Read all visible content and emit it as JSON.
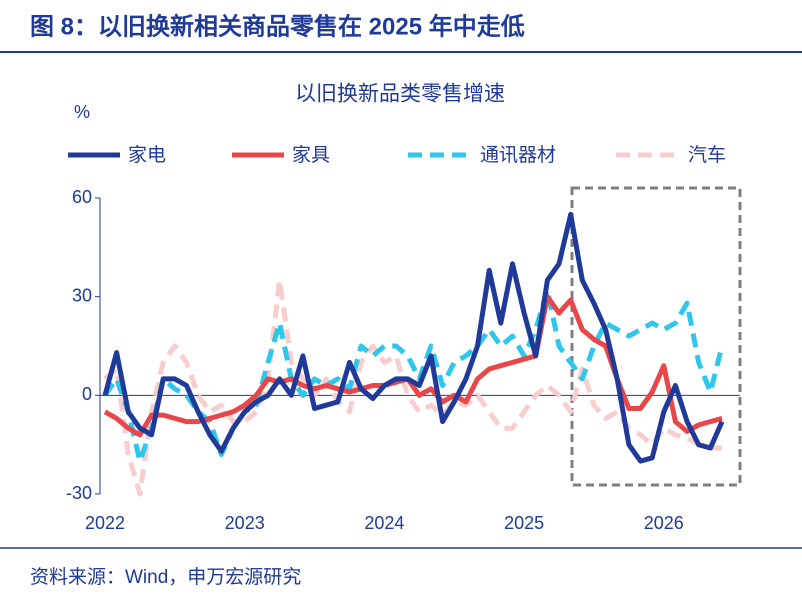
{
  "header": {
    "title": "图 8：以旧换新相关商品零售在 2025 年中走低"
  },
  "chart_data": {
    "type": "line",
    "title": "以旧换新品类零售增速",
    "y_label": "%",
    "categories": [
      "2022",
      null,
      null,
      null,
      null,
      null,
      null,
      null,
      null,
      null,
      null,
      null,
      "2023",
      null,
      null,
      null,
      null,
      null,
      null,
      null,
      null,
      null,
      null,
      null,
      "2024",
      null,
      null,
      null,
      null,
      null,
      null,
      null,
      null,
      null,
      null,
      null,
      "2025",
      null,
      null,
      null,
      null,
      null,
      null,
      null,
      null,
      null,
      null,
      null,
      "2026",
      null,
      null,
      null,
      null,
      null
    ],
    "series": [
      {
        "name": "家电",
        "color": "#1f3a99",
        "dashed": false,
        "values": [
          0,
          13,
          -5,
          -10,
          -12,
          5,
          5,
          3,
          -5,
          -12,
          -17,
          -10,
          -5,
          -2,
          0,
          5,
          0,
          12,
          -4,
          -3,
          -2,
          10,
          2,
          -1,
          3,
          5,
          5,
          3,
          12,
          -8,
          -2,
          5,
          15,
          38,
          22,
          40,
          25,
          12,
          35,
          40,
          55,
          35,
          28,
          20,
          5,
          -15,
          -20,
          -19,
          -5,
          3,
          -8,
          -15,
          -16,
          -8
        ]
      },
      {
        "name": "家具",
        "color": "#e8474a",
        "dashed": false,
        "values": [
          -5,
          -7,
          -10,
          -12,
          -6,
          -6,
          -7,
          -8,
          -8,
          -7,
          -6,
          -5,
          -3,
          0,
          5,
          4,
          5,
          3,
          2,
          3,
          2,
          1,
          2,
          3,
          3,
          4,
          5,
          0,
          2,
          -2,
          0,
          -2,
          5,
          8,
          9,
          10,
          11,
          12,
          30,
          25,
          29,
          20,
          17,
          15,
          5,
          -4,
          -4,
          1,
          9,
          -8,
          -11,
          -9,
          -8,
          -7
        ]
      },
      {
        "name": "通讯器材",
        "color": "#2ec6ea",
        "dashed": true,
        "values": [
          0,
          5,
          -5,
          -20,
          -10,
          5,
          2,
          0,
          -5,
          -8,
          -18,
          -10,
          -5,
          -3,
          10,
          22,
          5,
          0,
          5,
          3,
          5,
          2,
          15,
          12,
          15,
          15,
          12,
          5,
          15,
          3,
          10,
          12,
          15,
          20,
          15,
          18,
          12,
          20,
          32,
          15,
          10,
          5,
          15,
          22,
          20,
          18,
          20,
          22,
          20,
          22,
          28,
          10,
          1,
          15
        ]
      },
      {
        "name": "汽车",
        "color": "#f8cdcd",
        "dashed": true,
        "values": [
          5,
          8,
          -18,
          -30,
          -5,
          10,
          15,
          10,
          0,
          -5,
          -3,
          -8,
          -8,
          -5,
          5,
          35,
          10,
          5,
          0,
          5,
          -2,
          -5,
          10,
          15,
          10,
          12,
          0,
          -5,
          -3,
          -6,
          -2,
          -3,
          0,
          -5,
          -10,
          -10,
          -5,
          0,
          3,
          0,
          -5,
          8,
          -3,
          -7,
          -5,
          -10,
          -12,
          -15,
          -10,
          -12,
          -13,
          -15,
          -16,
          -16
        ]
      }
    ],
    "ylim": [
      -30,
      60
    ],
    "yticks": [
      -30,
      0,
      30,
      60
    ],
    "grid": false
  },
  "footer": {
    "source": "资料来源：Wind，申万宏源研究"
  }
}
